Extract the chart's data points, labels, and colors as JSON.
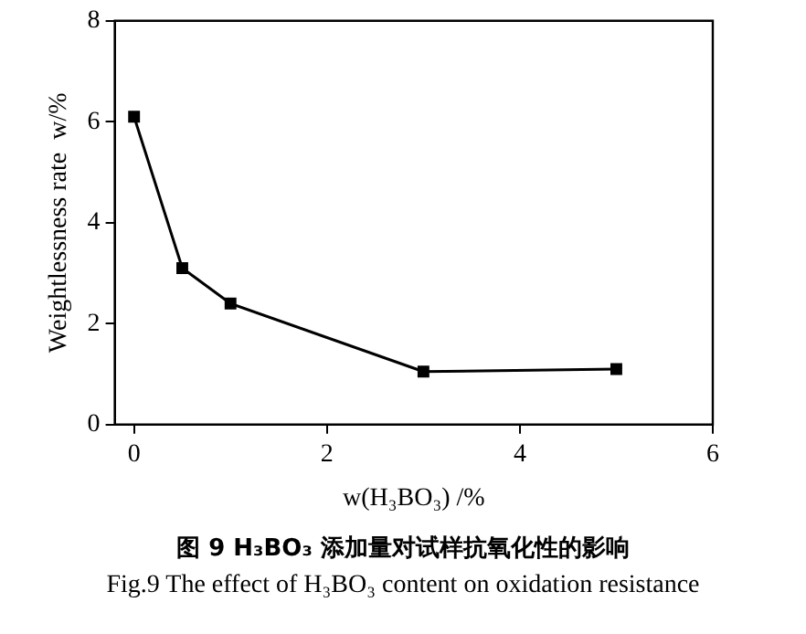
{
  "chart_data": {
    "type": "line",
    "title": "图 9  H₃BO₃ 添加量对试样抗氧化性的影响",
    "subtitle": "Fig.9  The effect of H₃BO₃ content on oxidation resistance",
    "xlabel": "w(H₃BO₃) /%",
    "ylabel": "Weightlessness rate  w/%",
    "x": [
      0,
      0.5,
      1,
      3,
      5
    ],
    "series": [
      {
        "color": "#000000",
        "values": [
          6.1,
          3.1,
          2.4,
          1.05,
          1.1
        ]
      }
    ],
    "xlim": [
      -0.2,
      6
    ],
    "xticks": [
      0,
      2,
      4,
      6
    ],
    "ylim": [
      0,
      8
    ],
    "yticks": [
      0,
      2,
      4,
      6,
      8
    ],
    "grid": false,
    "legend": false,
    "marker": "square",
    "line_style": "solid"
  }
}
